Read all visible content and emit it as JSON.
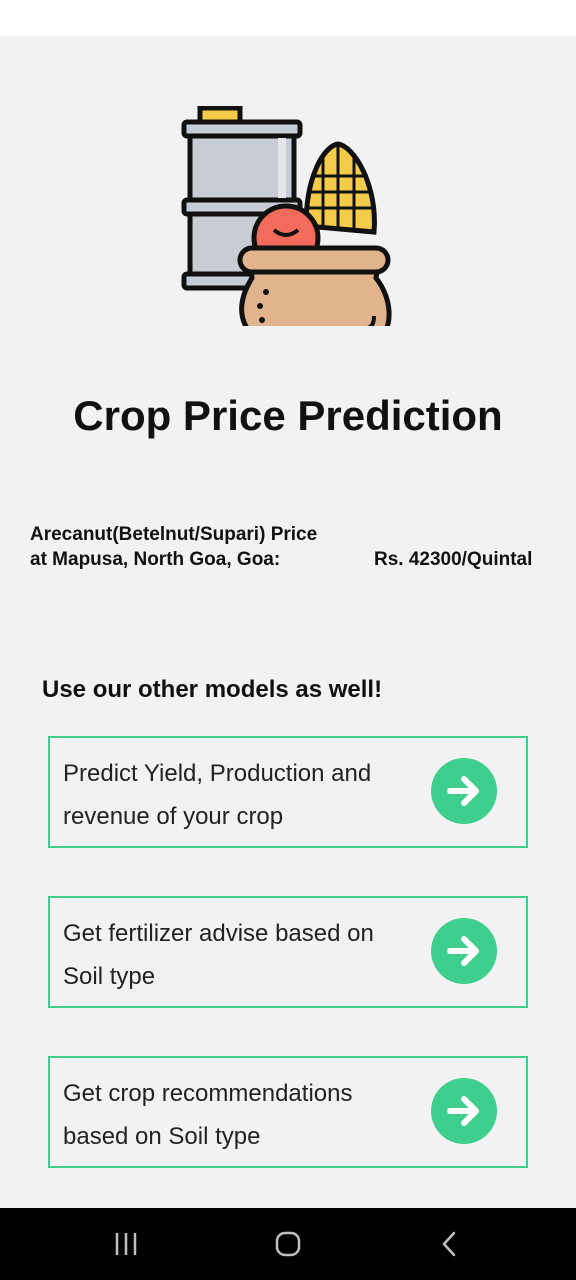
{
  "app": {
    "title": "Crop Price Prediction",
    "hero_icon": "crop-basket-icon"
  },
  "price": {
    "label": "Arecanut(Betelnut/Supari) Price at Mapusa, North Goa, Goa:",
    "value": "Rs. 42300/Quintal"
  },
  "models": {
    "heading": "Use our other models as well!",
    "items": [
      {
        "label": "Predict Yield, Production and revenue of your crop",
        "icon": "arrow-right-icon"
      },
      {
        "label": "Get fertilizer advise based on Soil type",
        "icon": "arrow-right-icon"
      },
      {
        "label": "Get crop recommendations based on Soil type",
        "icon": "arrow-right-icon"
      }
    ]
  },
  "colors": {
    "accent": "#3ecf8e",
    "background": "#f2f2f2"
  },
  "nav": {
    "icons": [
      "recent-apps-icon",
      "home-icon",
      "back-icon"
    ]
  }
}
